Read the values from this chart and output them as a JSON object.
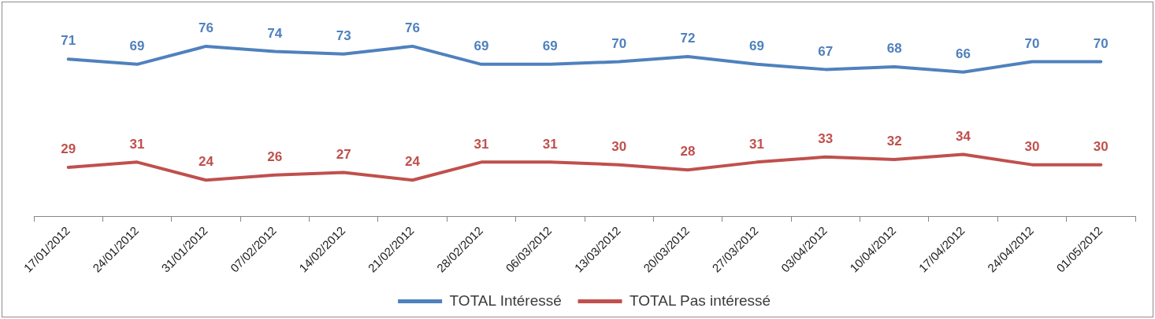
{
  "chart_data": {
    "type": "line",
    "categories": [
      "17/01/2012",
      "24/01/2012",
      "31/01/2012",
      "07/02/2012",
      "14/02/2012",
      "21/02/2012",
      "28/02/2012",
      "06/03/2012",
      "13/03/2012",
      "20/03/2012",
      "27/03/2012",
      "03/04/2012",
      "10/04/2012",
      "17/04/2012",
      "24/04/2012",
      "01/05/2012"
    ],
    "series": [
      {
        "name": "TOTAL Intéressé",
        "color": "#4f81bd",
        "values": [
          71,
          69,
          76,
          74,
          73,
          76,
          69,
          69,
          70,
          72,
          69,
          67,
          68,
          66,
          70,
          70
        ]
      },
      {
        "name": "TOTAL Pas intéressé",
        "color": "#c0504d",
        "values": [
          29,
          31,
          24,
          26,
          27,
          24,
          31,
          31,
          30,
          28,
          31,
          33,
          32,
          34,
          30,
          30
        ]
      }
    ],
    "tick_labels": "x",
    "data_labels": true,
    "legend": "bottom",
    "marker": "none",
    "line_style": "solid",
    "grid": false
  }
}
